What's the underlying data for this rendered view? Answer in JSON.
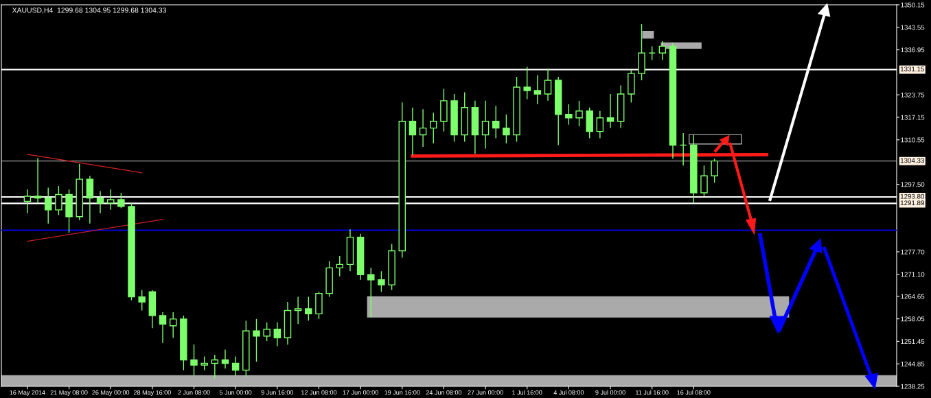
{
  "chart_data": {
    "type": "candlestick",
    "title": "XAUUSD,H4  1299.68 1304.95 1299.68 1304.33",
    "color": "#7dff6b",
    "categories": [
      "16 May 2014",
      null,
      null,
      null,
      "21 May 08:00",
      null,
      null,
      null,
      "26 May 00:00",
      null,
      null,
      null,
      "28 May 16:00",
      null,
      null,
      null,
      "2 Jun 08:00",
      null,
      null,
      null,
      "5 Jun 00:00",
      null,
      null,
      null,
      "9 Jun 16:00",
      null,
      null,
      null,
      "12 Jun 08:00",
      null,
      null,
      null,
      "17 Jun 00:00",
      null,
      null,
      null,
      "19 Jun 16:00",
      null,
      null,
      null,
      "24 Jun 08:00",
      null,
      null,
      null,
      "27 Jun 00:00",
      null,
      null,
      null,
      "1 Jul 16:00",
      null,
      null,
      null,
      "4 Jul 08:00",
      null,
      null,
      null,
      "9 Jul 00:00",
      null,
      null,
      null,
      "11 Jul 16:00",
      null,
      null,
      null,
      "16 Jul 08:00",
      null,
      null,
      null,
      null,
      null,
      null,
      null,
      null,
      null,
      null,
      null,
      null,
      null,
      null,
      null,
      null,
      null,
      null,
      null
    ],
    "ohlc": [
      [
        1292.5,
        1296,
        1289,
        1294
      ],
      [
        1294,
        1305.2,
        1292,
        1293.5
      ],
      [
        1293.5,
        1296.5,
        1286,
        1290
      ],
      [
        1290,
        1297,
        1288.5,
        1294.5
      ],
      [
        1294.5,
        1296,
        1283.3,
        1288
      ],
      [
        1288,
        1303.5,
        1287,
        1299
      ],
      [
        1299,
        1300,
        1286,
        1293.5
      ],
      [
        1293.5,
        1295.5,
        1289,
        1292
      ],
      [
        1292,
        1296,
        1290,
        1293
      ],
      [
        1293,
        1295,
        1290.5,
        1291
      ],
      [
        1291,
        1292,
        1263.5,
        1264.5
      ],
      [
        1264.5,
        1266.5,
        1260.5,
        1263
      ],
      [
        1266,
        1266.5,
        1255.3,
        1259
      ],
      [
        1259,
        1260,
        1251,
        1256.5
      ],
      [
        1256,
        1260,
        1252.5,
        1258
      ],
      [
        1258,
        1259,
        1243,
        1246
      ],
      [
        1246,
        1250.5,
        1241.5,
        1244.5
      ],
      [
        1244.5,
        1247,
        1243,
        1245
      ],
      [
        1245,
        1247.5,
        1240.5,
        1246
      ],
      [
        1246,
        1249,
        1243.5,
        1245
      ],
      [
        1245,
        1247,
        1241.2,
        1243
      ],
      [
        1243,
        1257.5,
        1241,
        1254.5
      ],
      [
        1254.5,
        1258,
        1245.5,
        1253
      ],
      [
        1253,
        1257,
        1251.5,
        1255
      ],
      [
        1255,
        1257,
        1250,
        1252.5
      ],
      [
        1252.5,
        1263,
        1250.5,
        1260.5
      ],
      [
        1260.5,
        1264.5,
        1256.5,
        1261
      ],
      [
        1261,
        1264.5,
        1257.5,
        1259.5
      ],
      [
        1259.5,
        1266,
        1258,
        1265.5
      ],
      [
        1265.5,
        1275,
        1264.5,
        1273
      ],
      [
        1273,
        1276.5,
        1270.5,
        1274
      ],
      [
        1274,
        1284.3,
        1272,
        1282
      ],
      [
        1282,
        1283,
        1269.5,
        1271
      ],
      [
        1271,
        1273,
        1258.6,
        1269.5
      ],
      [
        1269.5,
        1272,
        1266,
        1268
      ],
      [
        1268,
        1280,
        1266.5,
        1278
      ],
      [
        1278,
        1321.5,
        1276,
        1316
      ],
      [
        1316,
        1320,
        1306,
        1312
      ],
      [
        1312,
        1319.5,
        1308.5,
        1314
      ],
      [
        1314,
        1318.5,
        1309.5,
        1316
      ],
      [
        1316,
        1325.5,
        1313,
        1322
      ],
      [
        1322,
        1324,
        1310,
        1312
      ],
      [
        1312,
        1324.5,
        1310,
        1320
      ],
      [
        1320,
        1322,
        1306.5,
        1312
      ],
      [
        1312,
        1322,
        1308,
        1316
      ],
      [
        1316,
        1320.5,
        1311,
        1314
      ],
      [
        1314,
        1318,
        1309.5,
        1312
      ],
      [
        1312,
        1329,
        1310,
        1326
      ],
      [
        1326,
        1332,
        1322.5,
        1325
      ],
      [
        1325,
        1329.5,
        1321,
        1324
      ],
      [
        1324,
        1331.5,
        1322,
        1328
      ],
      [
        1328,
        1329,
        1309,
        1318
      ],
      [
        1318,
        1321,
        1315,
        1317
      ],
      [
        1317,
        1322,
        1314.5,
        1319
      ],
      [
        1319,
        1320,
        1311,
        1313
      ],
      [
        1313,
        1319,
        1311,
        1317
      ],
      [
        1317,
        1324,
        1314,
        1316
      ],
      [
        1316,
        1326.5,
        1314,
        1324
      ],
      [
        1324,
        1331,
        1321.5,
        1330
      ],
      [
        1330,
        1344.5,
        1328,
        1336
      ],
      [
        1336,
        1338,
        1334,
        1336
      ],
      [
        1336,
        1339.5,
        1334,
        1338
      ],
      [
        1338,
        1339,
        1305,
        1309
      ],
      [
        1309,
        1312.5,
        1303,
        1309
      ],
      [
        1309,
        1312,
        1292,
        1295
      ],
      [
        1295,
        1303,
        1294,
        1300
      ],
      [
        1300,
        1305,
        1298,
        1304.33
      ],
      null,
      null,
      null,
      null,
      null,
      null,
      null,
      null,
      null,
      null,
      null,
      null,
      null,
      null,
      null,
      null,
      null
    ],
    "series": [
      {
        "type": "line",
        "color": "#cc2222",
        "line_style": "solid",
        "values": [
          1306.3,
          null,
          null,
          null,
          null,
          null,
          null,
          null,
          null,
          null,
          null,
          1300.9,
          null,
          null,
          null,
          null,
          null,
          null,
          null,
          null,
          null,
          null,
          null,
          null,
          null,
          null,
          null,
          null,
          null,
          null,
          null,
          null,
          null,
          null,
          null,
          null,
          null,
          null,
          null,
          null,
          null,
          null,
          null,
          null,
          null,
          null,
          null,
          null,
          null,
          null,
          null,
          null,
          null,
          null,
          null,
          null,
          null,
          null,
          null,
          null,
          null,
          null,
          null,
          null,
          null,
          null,
          null,
          null,
          null,
          null,
          null,
          null,
          null,
          null,
          null,
          null,
          null,
          null,
          null,
          null,
          null,
          null,
          null,
          null
        ]
      },
      {
        "type": "line",
        "color": "#cc2222",
        "line_style": "solid",
        "values": [
          1280.8,
          null,
          null,
          null,
          null,
          null,
          null,
          null,
          null,
          null,
          null,
          null,
          null,
          1287.2,
          null,
          null,
          null,
          null,
          null,
          null,
          null,
          null,
          null,
          null,
          null,
          null,
          null,
          null,
          null,
          null,
          null,
          null,
          null,
          null,
          null,
          null,
          null,
          null,
          null,
          null,
          null,
          null,
          null,
          null,
          null,
          null,
          null,
          null,
          null,
          null,
          null,
          null,
          null,
          null,
          null,
          null,
          null,
          null,
          null,
          null,
          null,
          null,
          null,
          null,
          null,
          null,
          null,
          null,
          null,
          null,
          null,
          null,
          null,
          null,
          null,
          null,
          null,
          null,
          null,
          null,
          null,
          null,
          null,
          null
        ]
      },
      {
        "type": "line",
        "color": "#ff1a1a",
        "line_style": "solid",
        "values": [
          null,
          null,
          null,
          null,
          null,
          null,
          null,
          null,
          null,
          null,
          null,
          null,
          null,
          null,
          null,
          null,
          null,
          null,
          null,
          null,
          null,
          null,
          null,
          null,
          null,
          null,
          null,
          null,
          null,
          null,
          null,
          null,
          null,
          null,
          null,
          null,
          null,
          1305.8,
          null,
          null,
          null,
          null,
          null,
          null,
          null,
          null,
          null,
          null,
          null,
          null,
          null,
          null,
          null,
          null,
          1306.0,
          null,
          null,
          null,
          null,
          null,
          null,
          null,
          null,
          null,
          null,
          null,
          null,
          null,
          null,
          null,
          null,
          1306.2,
          null,
          null,
          null,
          null,
          null,
          null,
          null,
          null,
          null,
          null,
          null,
          null
        ]
      }
    ],
    "ylim": [
      1238.25,
      1350.15
    ],
    "yticks": [
      1238.25,
      1244.85,
      1251.45,
      1258.05,
      1264.65,
      {
        "value": 1271.1,
        "label": "1271.10"
      },
      {
        "value": 1277.7,
        "label": "1277.70"
      },
      {
        "value": 1297.5,
        "label": "1297.50"
      },
      1310.55,
      1317.15,
      1323.75,
      1336.95,
      1343.55,
      1350.15
    ],
    "ref_lines": [
      {
        "axis": "y",
        "value": 1331.15,
        "label": "1331.15",
        "color": "#ffffff"
      },
      {
        "axis": "y",
        "value": 1304.33,
        "label": "1304.33",
        "color": "#a0a0a0"
      },
      {
        "axis": "y",
        "value": 1293.8,
        "label": "1293.80",
        "color": "#ffffff"
      },
      {
        "axis": "y",
        "value": 1291.89,
        "label": "1291.89",
        "color": "#ffffff"
      },
      {
        "axis": "y",
        "value": 1284.0,
        "color": "#0000cc"
      }
    ],
    "bands": [
      {
        "axis": "y",
        "from": 1238.25,
        "to": 1241.5,
        "color": "#aaaaaa"
      }
    ],
    "grid": false
  }
}
